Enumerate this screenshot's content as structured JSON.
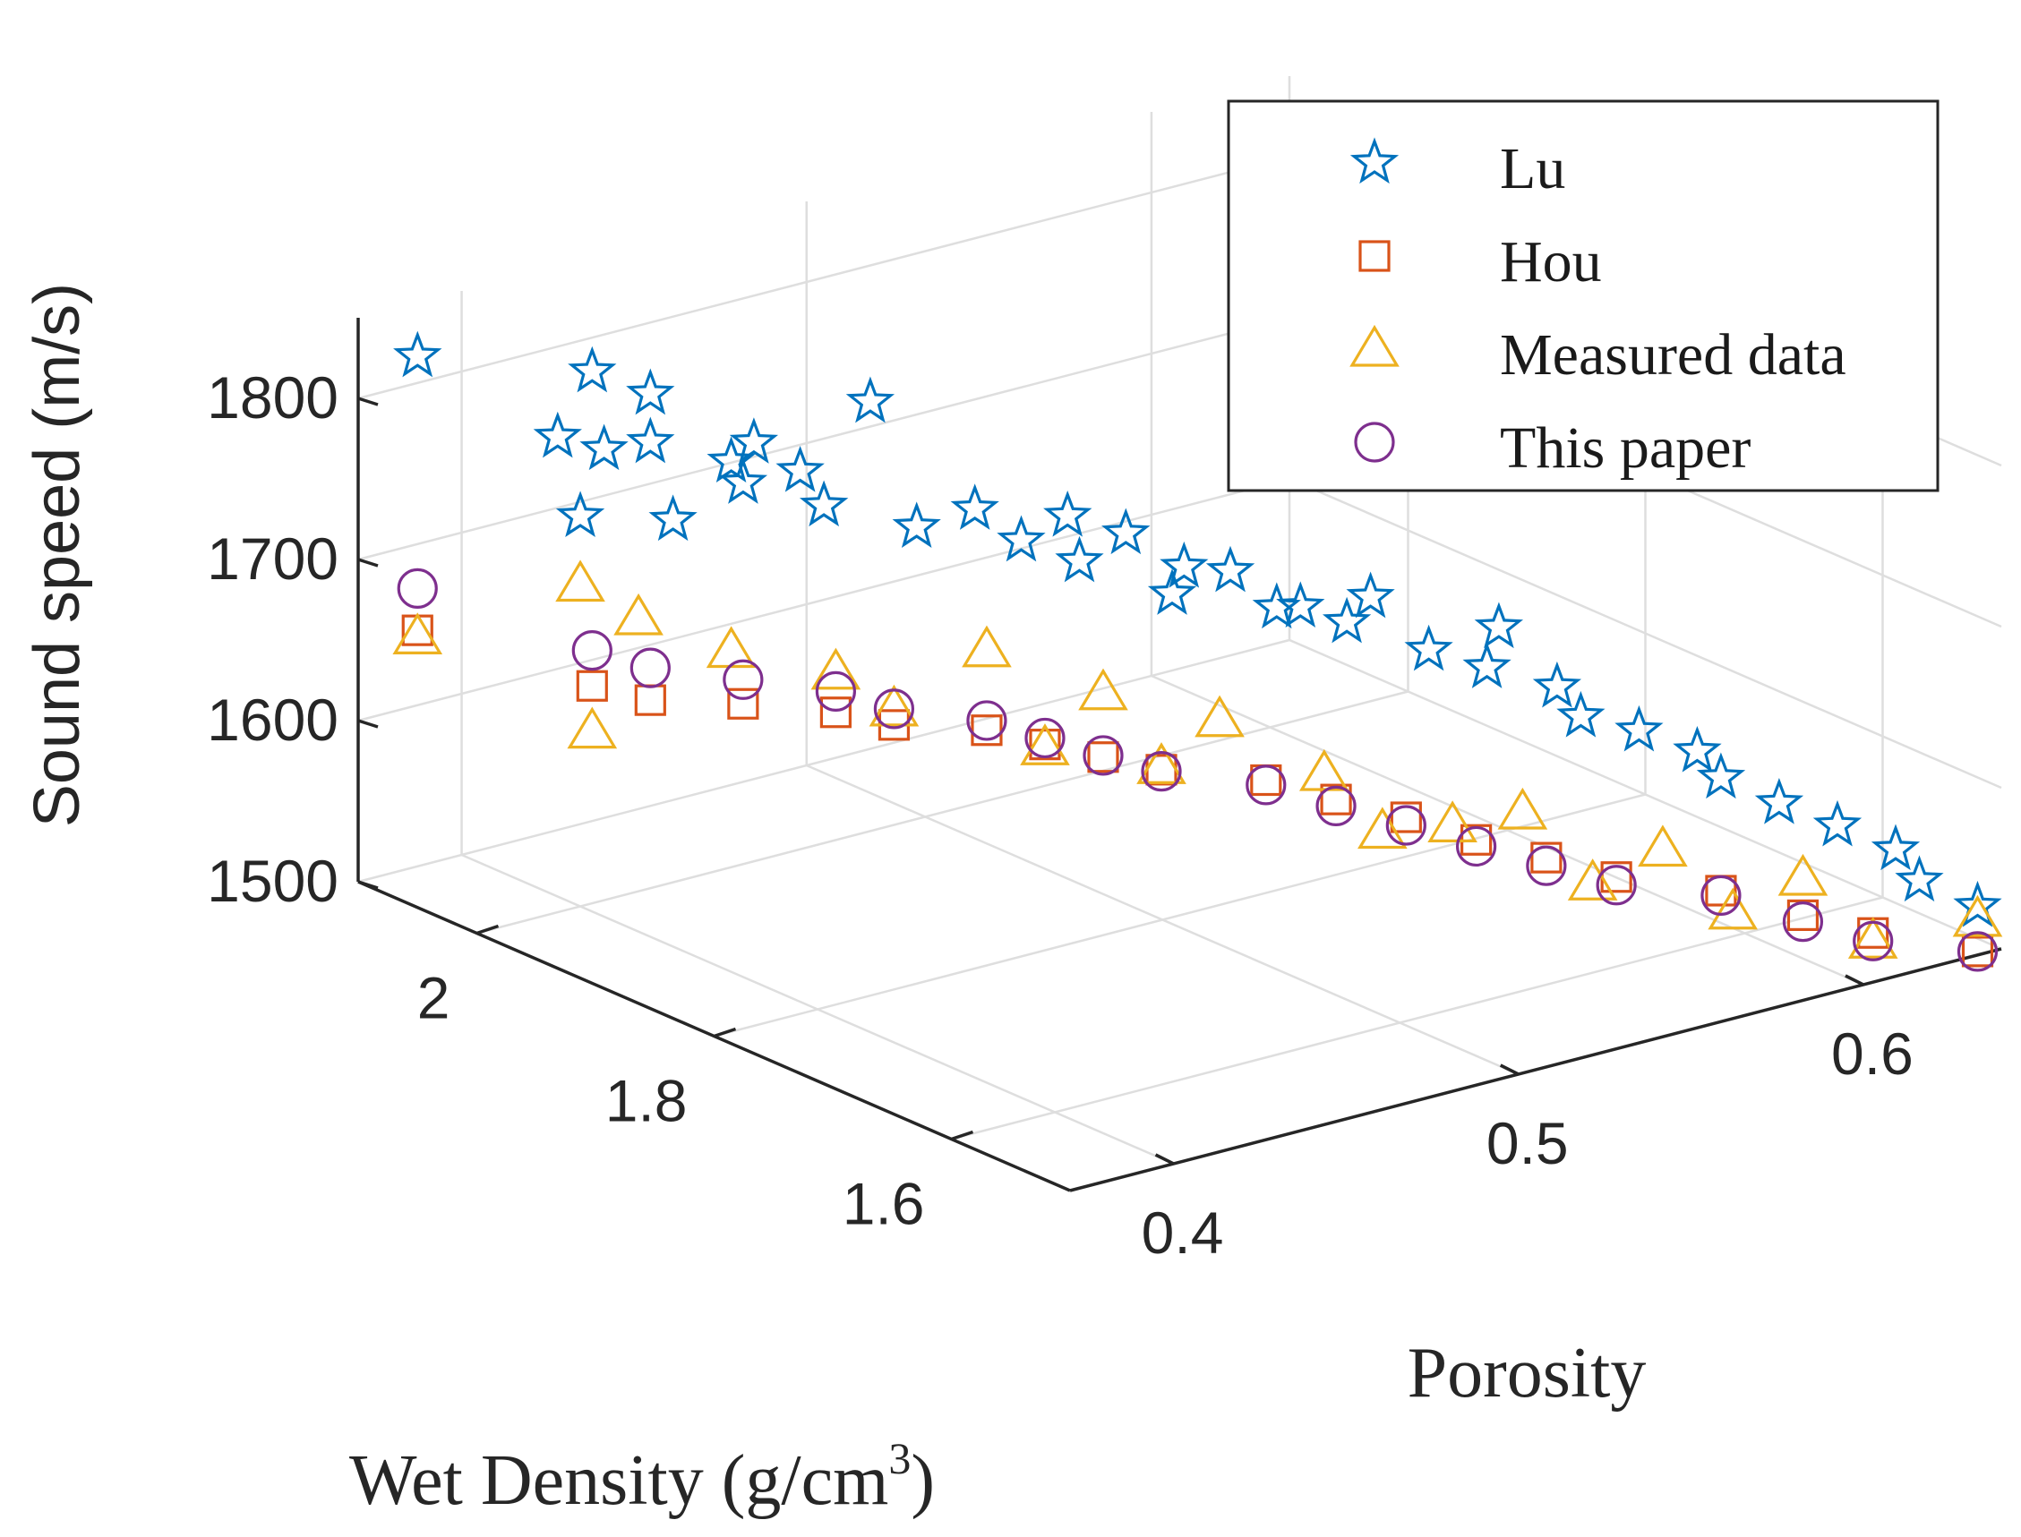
{
  "chart_data": {
    "type": "scatter3d",
    "title": "",
    "xlabel": "Wet Density (g/cm",
    "xlabel_sup": "3",
    "xlabel_end": ")",
    "ylabel": "Porosity",
    "zlabel": "Sound speed (m/s)",
    "x_ticks": [
      "2",
      "1.8",
      "1.6"
    ],
    "y_ticks": [
      "0.4",
      "0.5",
      "0.6"
    ],
    "z_ticks": [
      "1500",
      "1600",
      "1700",
      "1800"
    ],
    "xlim": [
      1.5,
      2.1
    ],
    "ylim": [
      0.37,
      0.64
    ],
    "zlim": [
      1500,
      1850
    ],
    "grid": true,
    "legend_position": "top-right",
    "colors": {
      "Lu": "#0072BD",
      "Hou": "#D95319",
      "Measured data": "#EDB120",
      "This paper": "#7E2F8E"
    },
    "series": [
      {
        "name": "Lu",
        "marker": "star",
        "points": [
          {
            "density": 2.05,
            "porosity": 0.37,
            "speed": 1842
          },
          {
            "density": 1.99,
            "porosity": 0.4,
            "speed": 1835
          },
          {
            "density": 1.97,
            "porosity": 0.41,
            "speed": 1822
          },
          {
            "density": 1.99,
            "porosity": 0.39,
            "speed": 1800
          },
          {
            "density": 1.98,
            "porosity": 0.4,
            "speed": 1790
          },
          {
            "density": 1.97,
            "porosity": 0.41,
            "speed": 1792
          },
          {
            "density": 1.96,
            "porosity": 0.43,
            "speed": 1772
          },
          {
            "density": 1.95,
            "porosity": 0.43,
            "speed": 1762
          },
          {
            "density": 1.97,
            "porosity": 0.44,
            "speed": 1775
          },
          {
            "density": 1.96,
            "porosity": 0.45,
            "speed": 1755
          },
          {
            "density": 1.94,
            "porosity": 0.45,
            "speed": 1740
          },
          {
            "density": 1.98,
            "porosity": 0.42,
            "speed": 1735
          },
          {
            "density": 2.0,
            "porosity": 0.4,
            "speed": 1742
          },
          {
            "density": 1.93,
            "porosity": 0.46,
            "speed": 1802
          },
          {
            "density": 1.92,
            "porosity": 0.47,
            "speed": 1722
          },
          {
            "density": 1.9,
            "porosity": 0.48,
            "speed": 1734
          },
          {
            "density": 1.89,
            "porosity": 0.49,
            "speed": 1712
          },
          {
            "density": 1.88,
            "porosity": 0.5,
            "speed": 1725
          },
          {
            "density": 1.87,
            "porosity": 0.5,
            "speed": 1700
          },
          {
            "density": 1.86,
            "porosity": 0.51,
            "speed": 1715
          },
          {
            "density": 1.84,
            "porosity": 0.52,
            "speed": 1695
          },
          {
            "density": 1.85,
            "porosity": 0.52,
            "speed": 1675
          },
          {
            "density": 1.83,
            "porosity": 0.53,
            "speed": 1690
          },
          {
            "density": 1.82,
            "porosity": 0.54,
            "speed": 1665
          },
          {
            "density": 1.8,
            "porosity": 0.54,
            "speed": 1672
          },
          {
            "density": 1.79,
            "porosity": 0.55,
            "speed": 1660
          },
          {
            "density": 1.77,
            "porosity": 0.55,
            "speed": 1682
          },
          {
            "density": 1.75,
            "porosity": 0.56,
            "speed": 1650
          },
          {
            "density": 1.73,
            "porosity": 0.57,
            "speed": 1640
          },
          {
            "density": 1.72,
            "porosity": 0.57,
            "speed": 1668
          },
          {
            "density": 1.7,
            "porosity": 0.58,
            "speed": 1632
          },
          {
            "density": 1.68,
            "porosity": 0.58,
            "speed": 1620
          },
          {
            "density": 1.66,
            "porosity": 0.59,
            "speed": 1612
          },
          {
            "density": 1.64,
            "porosity": 0.6,
            "speed": 1600
          },
          {
            "density": 1.62,
            "porosity": 0.6,
            "speed": 1590
          },
          {
            "density": 1.6,
            "porosity": 0.61,
            "speed": 1575
          },
          {
            "density": 1.58,
            "porosity": 0.62,
            "speed": 1562
          },
          {
            "density": 1.56,
            "porosity": 0.63,
            "speed": 1548
          },
          {
            "density": 1.54,
            "porosity": 0.63,
            "speed": 1535
          },
          {
            "density": 1.52,
            "porosity": 0.64,
            "speed": 1520
          }
        ]
      },
      {
        "name": "Hou",
        "marker": "square",
        "points": [
          {
            "density": 2.05,
            "porosity": 0.37,
            "speed": 1672
          },
          {
            "density": 1.99,
            "porosity": 0.4,
            "speed": 1640
          },
          {
            "density": 1.97,
            "porosity": 0.41,
            "speed": 1632
          },
          {
            "density": 1.95,
            "porosity": 0.43,
            "speed": 1625
          },
          {
            "density": 1.93,
            "porosity": 0.45,
            "speed": 1615
          },
          {
            "density": 1.91,
            "porosity": 0.46,
            "speed": 1608
          },
          {
            "density": 1.89,
            "porosity": 0.48,
            "speed": 1600
          },
          {
            "density": 1.87,
            "porosity": 0.49,
            "speed": 1592
          },
          {
            "density": 1.85,
            "porosity": 0.5,
            "speed": 1585
          },
          {
            "density": 1.83,
            "porosity": 0.51,
            "speed": 1578
          },
          {
            "density": 1.8,
            "porosity": 0.53,
            "speed": 1570
          },
          {
            "density": 1.77,
            "porosity": 0.54,
            "speed": 1562
          },
          {
            "density": 1.74,
            "porosity": 0.55,
            "speed": 1555
          },
          {
            "density": 1.71,
            "porosity": 0.56,
            "speed": 1545
          },
          {
            "density": 1.68,
            "porosity": 0.57,
            "speed": 1538
          },
          {
            "density": 1.65,
            "porosity": 0.58,
            "speed": 1530
          },
          {
            "density": 1.62,
            "porosity": 0.6,
            "speed": 1520
          },
          {
            "density": 1.58,
            "porosity": 0.61,
            "speed": 1512
          },
          {
            "density": 1.55,
            "porosity": 0.62,
            "speed": 1505
          },
          {
            "density": 1.52,
            "porosity": 0.64,
            "speed": 1492
          }
        ]
      },
      {
        "name": "Measured data",
        "marker": "triangle",
        "points": [
          {
            "density": 2.05,
            "porosity": 0.37,
            "speed": 1668
          },
          {
            "density": 2.0,
            "porosity": 0.4,
            "speed": 1700
          },
          {
            "density": 1.98,
            "porosity": 0.41,
            "speed": 1680
          },
          {
            "density": 1.99,
            "porosity": 0.4,
            "speed": 1612
          },
          {
            "density": 1.96,
            "porosity": 0.43,
            "speed": 1655
          },
          {
            "density": 1.93,
            "porosity": 0.45,
            "speed": 1640
          },
          {
            "density": 1.91,
            "porosity": 0.46,
            "speed": 1618
          },
          {
            "density": 1.89,
            "porosity": 0.48,
            "speed": 1650
          },
          {
            "density": 1.87,
            "porosity": 0.49,
            "speed": 1590
          },
          {
            "density": 1.85,
            "porosity": 0.5,
            "speed": 1625
          },
          {
            "density": 1.83,
            "porosity": 0.51,
            "speed": 1580
          },
          {
            "density": 1.81,
            "porosity": 0.52,
            "speed": 1610
          },
          {
            "density": 1.78,
            "porosity": 0.54,
            "speed": 1575
          },
          {
            "density": 1.76,
            "porosity": 0.55,
            "speed": 1540
          },
          {
            "density": 1.73,
            "porosity": 0.56,
            "speed": 1548
          },
          {
            "density": 1.7,
            "porosity": 0.57,
            "speed": 1560
          },
          {
            "density": 1.67,
            "porosity": 0.58,
            "speed": 1520
          },
          {
            "density": 1.64,
            "porosity": 0.59,
            "speed": 1545
          },
          {
            "density": 1.61,
            "porosity": 0.6,
            "speed": 1510
          },
          {
            "density": 1.58,
            "porosity": 0.61,
            "speed": 1535
          },
          {
            "density": 1.55,
            "porosity": 0.62,
            "speed": 1500
          },
          {
            "density": 1.52,
            "porosity": 0.64,
            "speed": 1512
          }
        ]
      },
      {
        "name": "This paper",
        "marker": "circle",
        "points": [
          {
            "density": 2.05,
            "porosity": 0.37,
            "speed": 1698
          },
          {
            "density": 1.99,
            "porosity": 0.4,
            "speed": 1662
          },
          {
            "density": 1.97,
            "porosity": 0.41,
            "speed": 1652
          },
          {
            "density": 1.95,
            "porosity": 0.43,
            "speed": 1640
          },
          {
            "density": 1.93,
            "porosity": 0.45,
            "speed": 1628
          },
          {
            "density": 1.91,
            "porosity": 0.46,
            "speed": 1618
          },
          {
            "density": 1.89,
            "porosity": 0.48,
            "speed": 1606
          },
          {
            "density": 1.87,
            "porosity": 0.49,
            "speed": 1596
          },
          {
            "density": 1.85,
            "porosity": 0.5,
            "speed": 1586
          },
          {
            "density": 1.83,
            "porosity": 0.51,
            "speed": 1577
          },
          {
            "density": 1.8,
            "porosity": 0.53,
            "speed": 1567
          },
          {
            "density": 1.77,
            "porosity": 0.54,
            "speed": 1558
          },
          {
            "density": 1.74,
            "porosity": 0.55,
            "speed": 1550
          },
          {
            "density": 1.71,
            "porosity": 0.56,
            "speed": 1541
          },
          {
            "density": 1.68,
            "porosity": 0.57,
            "speed": 1533
          },
          {
            "density": 1.65,
            "porosity": 0.58,
            "speed": 1525
          },
          {
            "density": 1.62,
            "porosity": 0.6,
            "speed": 1517
          },
          {
            "density": 1.58,
            "porosity": 0.61,
            "speed": 1508
          },
          {
            "density": 1.55,
            "porosity": 0.62,
            "speed": 1500
          },
          {
            "density": 1.52,
            "porosity": 0.64,
            "speed": 1492
          }
        ]
      }
    ]
  }
}
